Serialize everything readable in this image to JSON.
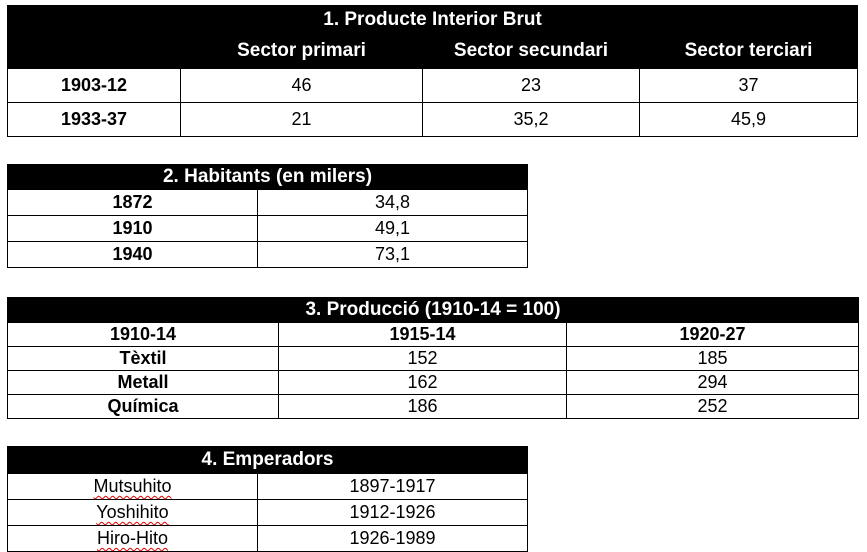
{
  "table1": {
    "title": "1. Producte Interior Brut",
    "headers": [
      "",
      "Sector primari",
      "Sector secundari",
      "Sector terciari"
    ],
    "rows": [
      {
        "label": "1903-12",
        "values": [
          "46",
          "23",
          "37"
        ]
      },
      {
        "label": "1933-37",
        "values": [
          "21",
          "35,2",
          "45,9"
        ]
      }
    ]
  },
  "table2": {
    "title": "2. Habitants (en milers)",
    "rows": [
      {
        "label": "1872",
        "value": "34,8"
      },
      {
        "label": "1910",
        "value": "49,1"
      },
      {
        "label": "1940",
        "value": "73,1"
      }
    ]
  },
  "table3": {
    "title": "3. Producció (1910-14 = 100)",
    "headers": [
      "1910-14",
      "1915-14",
      "1920-27"
    ],
    "rows": [
      {
        "label": "Tèxtil",
        "values": [
          "152",
          "185"
        ]
      },
      {
        "label": "Metall",
        "values": [
          "162",
          "294"
        ]
      },
      {
        "label": "Química",
        "values": [
          "186",
          "252"
        ]
      }
    ]
  },
  "table4": {
    "title": "4. Emperadors",
    "rows": [
      {
        "label": "Mutsuhito",
        "value": "1897-1917"
      },
      {
        "label": "Yoshihito",
        "value": "1912-1926"
      },
      {
        "label": "Hiro-Hito",
        "value": "1926-1989"
      }
    ]
  }
}
